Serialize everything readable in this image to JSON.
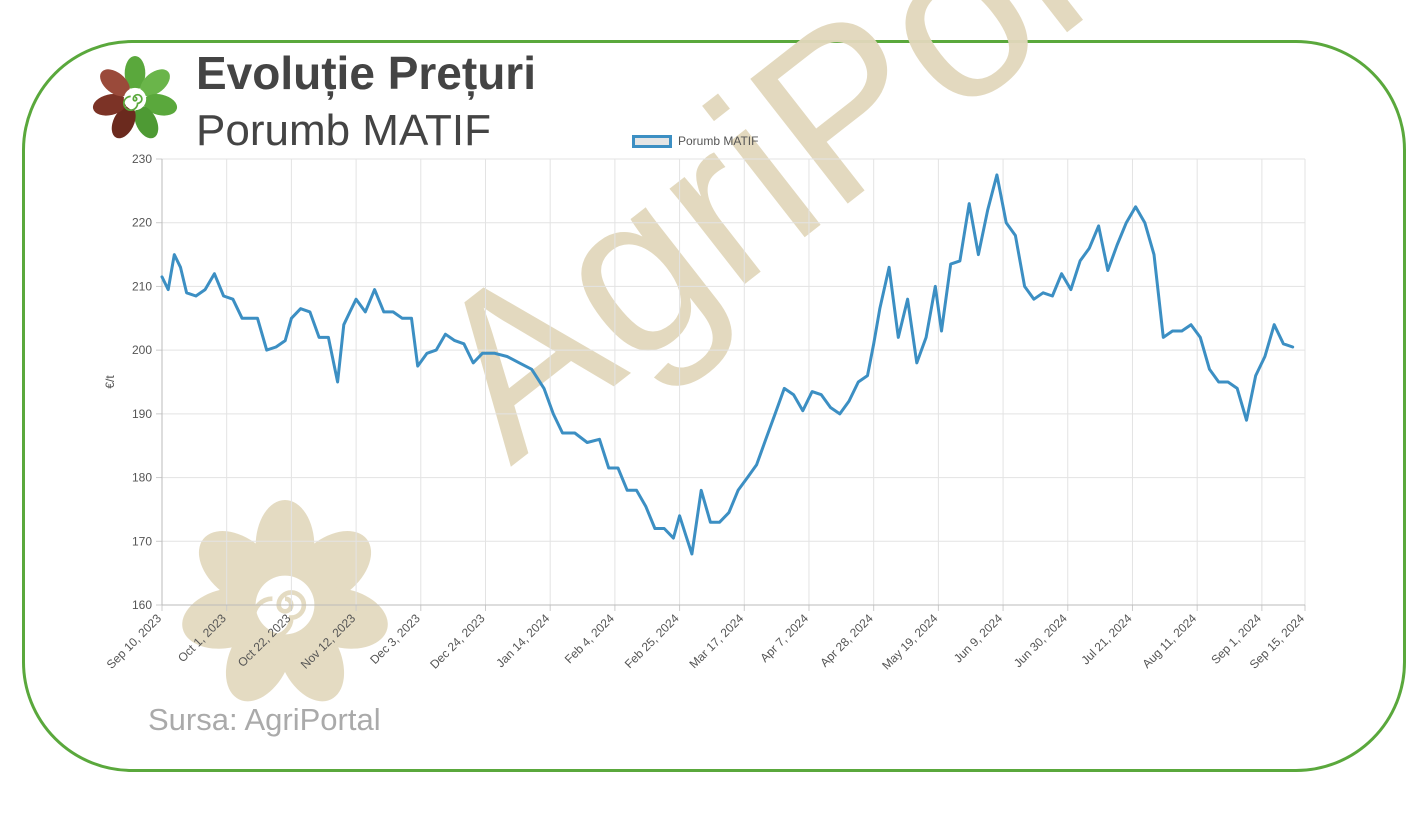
{
  "header": {
    "title": "Evoluție Prețuri",
    "subtitle": "Porumb MATIF",
    "brand_colors": {
      "frame": "#5aa83c",
      "line": "#3c8fc3",
      "watermark": "#e2d8bc"
    }
  },
  "footer": {
    "source": "Sursa: AgriPortal"
  },
  "watermark": {
    "text": "AgriPortal"
  },
  "logo": {
    "icon": "agriportal-flower-icon"
  },
  "chart_data": {
    "type": "line",
    "ylabel": "€/t",
    "xlabel": "",
    "ylim": [
      160,
      230
    ],
    "yticks": [
      160,
      170,
      180,
      190,
      200,
      210,
      220,
      230
    ],
    "xlim": [
      "2023-09-10",
      "2024-09-15"
    ],
    "xticks": [
      "Sep 10, 2023",
      "Oct 1, 2023",
      "Oct 22, 2023",
      "Nov 12, 2023",
      "Dec 3, 2023",
      "Dec 24, 2023",
      "Jan 14, 2024",
      "Feb 4, 2024",
      "Feb 25, 2024",
      "Mar 17, 2024",
      "Apr 7, 2024",
      "Apr 28, 2024",
      "May 19, 2024",
      "Jun 9, 2024",
      "Jun 30, 2024",
      "Jul 21, 2024",
      "Aug 11, 2024",
      "Sep 1, 2024",
      "Sep 15, 2024"
    ],
    "grid": true,
    "legend_position": "top",
    "series": [
      {
        "name": "Porumb MATIF",
        "color": "#3c8fc3",
        "x": [
          "2023-09-10",
          "2023-09-12",
          "2023-09-14",
          "2023-09-16",
          "2023-09-18",
          "2023-09-21",
          "2023-09-24",
          "2023-09-27",
          "2023-09-30",
          "2023-10-03",
          "2023-10-06",
          "2023-10-08",
          "2023-10-11",
          "2023-10-14",
          "2023-10-17",
          "2023-10-20",
          "2023-10-22",
          "2023-10-25",
          "2023-10-28",
          "2023-10-31",
          "2023-11-03",
          "2023-11-06",
          "2023-11-08",
          "2023-11-10",
          "2023-11-12",
          "2023-11-15",
          "2023-11-18",
          "2023-11-21",
          "2023-11-24",
          "2023-11-27",
          "2023-11-30",
          "2023-12-02",
          "2023-12-05",
          "2023-12-08",
          "2023-12-11",
          "2023-12-14",
          "2023-12-17",
          "2023-12-20",
          "2023-12-23",
          "2023-12-27",
          "2023-12-31",
          "2024-01-04",
          "2024-01-08",
          "2024-01-12",
          "2024-01-15",
          "2024-01-18",
          "2024-01-22",
          "2024-01-26",
          "2024-01-30",
          "2024-02-02",
          "2024-02-05",
          "2024-02-08",
          "2024-02-11",
          "2024-02-14",
          "2024-02-17",
          "2024-02-20",
          "2024-02-23",
          "2024-02-25",
          "2024-02-27",
          "2024-02-29",
          "2024-03-03",
          "2024-03-06",
          "2024-03-09",
          "2024-03-12",
          "2024-03-15",
          "2024-03-18",
          "2024-03-21",
          "2024-03-24",
          "2024-03-27",
          "2024-03-30",
          "2024-04-02",
          "2024-04-05",
          "2024-04-08",
          "2024-04-11",
          "2024-04-14",
          "2024-04-17",
          "2024-04-20",
          "2024-04-23",
          "2024-04-26",
          "2024-04-28",
          "2024-04-30",
          "2024-05-03",
          "2024-05-06",
          "2024-05-09",
          "2024-05-12",
          "2024-05-15",
          "2024-05-18",
          "2024-05-20",
          "2024-05-23",
          "2024-05-26",
          "2024-05-29",
          "2024-06-01",
          "2024-06-04",
          "2024-06-07",
          "2024-06-10",
          "2024-06-13",
          "2024-06-16",
          "2024-06-19",
          "2024-06-22",
          "2024-06-25",
          "2024-06-28",
          "2024-07-01",
          "2024-07-04",
          "2024-07-07",
          "2024-07-10",
          "2024-07-13",
          "2024-07-16",
          "2024-07-19",
          "2024-07-22",
          "2024-07-25",
          "2024-07-28",
          "2024-07-31",
          "2024-08-03",
          "2024-08-06",
          "2024-08-09",
          "2024-08-12",
          "2024-08-15",
          "2024-08-18",
          "2024-08-21",
          "2024-08-24",
          "2024-08-27",
          "2024-08-30",
          "2024-09-02",
          "2024-09-05",
          "2024-09-08",
          "2024-09-11"
        ],
        "values": [
          211.5,
          209.5,
          215,
          213,
          209,
          208.5,
          209.5,
          212,
          208.5,
          208,
          205,
          205,
          205,
          200,
          200.5,
          201.5,
          205,
          206.5,
          206,
          202,
          202,
          195,
          204,
          206,
          208,
          206,
          209.5,
          206,
          206,
          205,
          205,
          197.5,
          199.5,
          200,
          202.5,
          201.5,
          201,
          198,
          199.5,
          199.5,
          199,
          198,
          197,
          194,
          190,
          187,
          187,
          185.5,
          186,
          181.5,
          181.5,
          178,
          178,
          175.5,
          172,
          172,
          170.5,
          174,
          171,
          168,
          178,
          173,
          173,
          174.5,
          178,
          180,
          182,
          186,
          190,
          194,
          193,
          190.5,
          193.5,
          193,
          191,
          190,
          192,
          195,
          196,
          201,
          206.5,
          213,
          202,
          208,
          198,
          202,
          210,
          203,
          213.5,
          214,
          223,
          215,
          222,
          227.5,
          220,
          218,
          210,
          208,
          209,
          208.5,
          212,
          209.5,
          214,
          216,
          219.5,
          212.5,
          216.5,
          220,
          222.5,
          220,
          215,
          202,
          203,
          203,
          204,
          202,
          197,
          195,
          195,
          194,
          189,
          196,
          199,
          204,
          201,
          200.5
        ],
        "max_label": "227.5",
        "min_label": "168"
      }
    ]
  }
}
